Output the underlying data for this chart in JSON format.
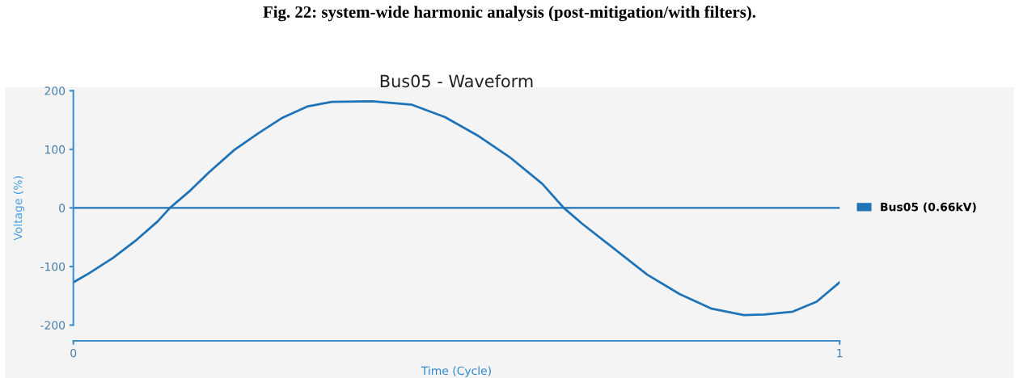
{
  "chart_data": {
    "type": "line",
    "title": "Bus05 - Waveform",
    "xlabel": "Time (Cycle)",
    "ylabel": "Voltage (%)",
    "annotations": [
      "Fig. 22: system-wide harmonic analysis (post-mitigation/with filters)."
    ],
    "x": [
      0,
      0.02,
      0.052,
      0.083,
      0.11,
      0.126,
      0.152,
      0.178,
      0.21,
      0.242,
      0.273,
      0.305,
      0.337,
      0.39,
      0.442,
      0.485,
      0.527,
      0.569,
      0.612,
      0.64,
      0.664,
      0.706,
      0.749,
      0.791,
      0.833,
      0.875,
      0.902,
      0.939,
      0.97,
      1.0
    ],
    "series": [
      {
        "name": "Bus05 (0.66kV)",
        "color": "#1f73b7",
        "values": [
          -127,
          -112,
          -85,
          -54,
          -23,
          0,
          29,
          62,
          99,
          128,
          154,
          173,
          181,
          182,
          176,
          155,
          124,
          87,
          41,
          0,
          -27,
          -70,
          -114,
          -147,
          -172,
          -183,
          -182,
          -177,
          -160,
          -127
        ]
      }
    ],
    "xlim": [
      0,
      1
    ],
    "xticks": [
      0,
      1
    ],
    "ylim": [
      -200,
      200
    ],
    "yticks": [
      -200,
      -100,
      0,
      100,
      200
    ],
    "ref_lines": [
      {
        "axis": "y",
        "value": 0,
        "color": "#1f73b7"
      }
    ],
    "grid": false,
    "legend": "right",
    "marker": "none",
    "line_style": "solid"
  }
}
